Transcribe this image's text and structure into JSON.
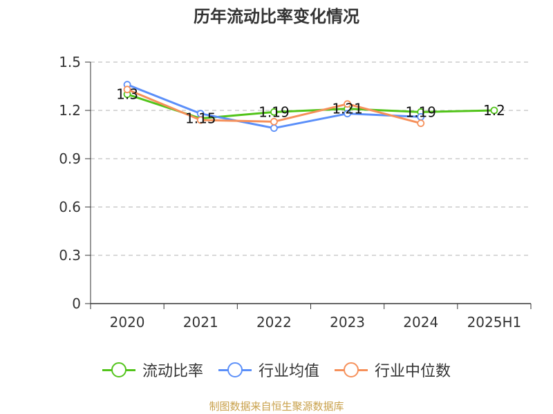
{
  "title": "历年流动比率变化情况",
  "source": "制图数据来自恒生聚源数据库",
  "chart_data": {
    "type": "line",
    "title": "历年流动比率变化情况",
    "categories": [
      "2020",
      "2021",
      "2022",
      "2023",
      "2024",
      "2025H1"
    ],
    "ylim": [
      0,
      1.5
    ],
    "yticks": [
      0,
      0.3,
      0.6,
      0.9,
      1.2,
      1.5
    ],
    "ytick_labels": [
      "0",
      "0.3",
      "0.6",
      "0.9",
      "1.2",
      "1.5"
    ],
    "grid": true,
    "legend_position": "bottom",
    "series": [
      {
        "name": "流动比率",
        "color": "#52c41a",
        "values": [
          1.3,
          1.15,
          1.19,
          1.21,
          1.19,
          1.2
        ],
        "labels": [
          "1.3",
          "1.15",
          "1.19",
          "1.21",
          "1.19",
          "1.2"
        ]
      },
      {
        "name": "行业均值",
        "color": "#5b8ff9",
        "values": [
          1.36,
          1.18,
          1.09,
          1.18,
          1.16,
          null
        ]
      },
      {
        "name": "行业中位数",
        "color": "#f6905a",
        "values": [
          1.33,
          1.14,
          1.13,
          1.24,
          1.12,
          null
        ]
      }
    ]
  }
}
